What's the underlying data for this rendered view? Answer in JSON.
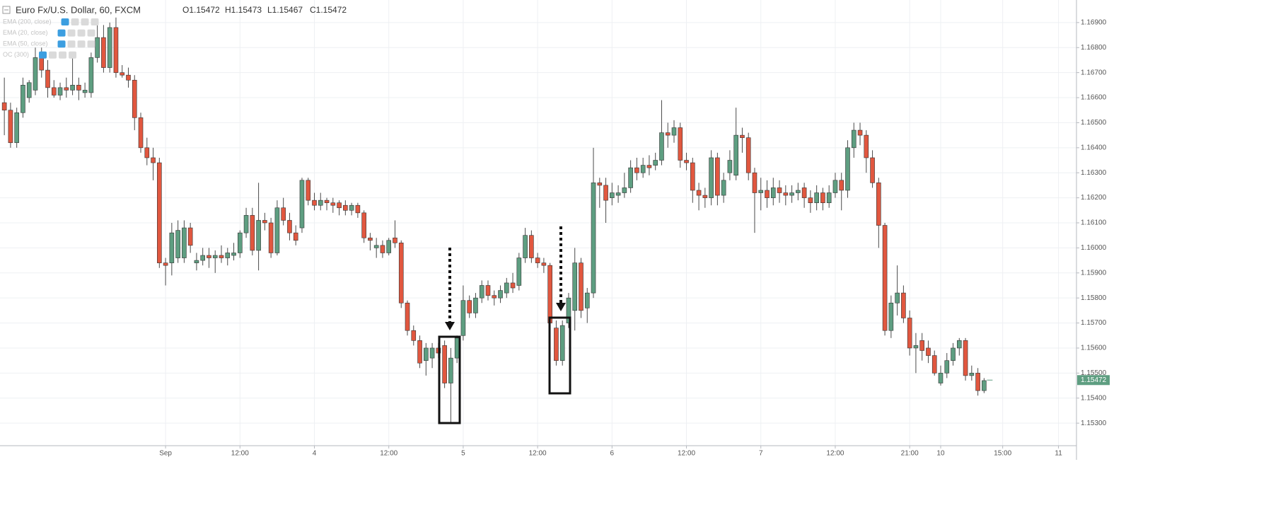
{
  "chart_data": {
    "type": "candlestick",
    "title": "Euro Fx/U.S. Dollar, 60, FXCM",
    "ohlc_legend": [
      "O1.15472",
      "H1.15473",
      "L1.15467",
      "C1.15472"
    ],
    "indicators": [
      "EMA (200, close)",
      "EMA (20, close)",
      "EMA (50, close)",
      "OC (300)"
    ],
    "up_color": "#5e9e81",
    "down_color": "#e1573f",
    "last_price": 1.15472,
    "grid": true,
    "xlim": [
      -0.7,
      172.9
    ],
    "ylim": [
      1.1521,
      1.1699
    ],
    "xticks": [
      {
        "value": 26,
        "label": "Sep"
      },
      {
        "value": 38,
        "label": "12:00"
      },
      {
        "value": 50,
        "label": "4"
      },
      {
        "value": 62,
        "label": "12:00"
      },
      {
        "value": 74,
        "label": "5"
      },
      {
        "value": 86,
        "label": "12:00"
      },
      {
        "value": 98,
        "label": "6"
      },
      {
        "value": 110,
        "label": "12:00"
      },
      {
        "value": 122,
        "label": "7"
      },
      {
        "value": 134,
        "label": "12:00"
      },
      {
        "value": 146,
        "label": "21:00"
      },
      {
        "value": 151,
        "label": "10"
      },
      {
        "value": 161,
        "label": "15:00"
      },
      {
        "value": 170,
        "label": "11"
      }
    ],
    "yticks": [
      {
        "value": 1.153,
        "label": "1.15300"
      },
      {
        "value": 1.154,
        "label": "1.15400"
      },
      {
        "value": 1.155,
        "label": "1.15500"
      },
      {
        "value": 1.156,
        "label": "1.15600"
      },
      {
        "value": 1.157,
        "label": "1.15700"
      },
      {
        "value": 1.158,
        "label": "1.15800"
      },
      {
        "value": 1.159,
        "label": "1.15900"
      },
      {
        "value": 1.16,
        "label": "1.16000"
      },
      {
        "value": 1.161,
        "label": "1.16100"
      },
      {
        "value": 1.162,
        "label": "1.16200"
      },
      {
        "value": 1.163,
        "label": "1.16300"
      },
      {
        "value": 1.164,
        "label": "1.16400"
      },
      {
        "value": 1.165,
        "label": "1.16500"
      },
      {
        "value": 1.166,
        "label": "1.16600"
      },
      {
        "value": 1.167,
        "label": "1.16700"
      },
      {
        "value": 1.168,
        "label": "1.16800"
      },
      {
        "value": 1.169,
        "label": "1.16900"
      }
    ],
    "candles": [
      [
        1.1658,
        1.1668,
        1.1645,
        1.1655
      ],
      [
        1.1655,
        1.1658,
        1.164,
        1.1642
      ],
      [
        1.1642,
        1.1656,
        1.164,
        1.1654
      ],
      [
        1.1654,
        1.1668,
        1.1652,
        1.1665
      ],
      [
        1.166,
        1.1667,
        1.1658,
        1.1666
      ],
      [
        1.1663,
        1.168,
        1.1661,
        1.1676
      ],
      [
        1.1676,
        1.168,
        1.1668,
        1.1671
      ],
      [
        1.1671,
        1.1675,
        1.166,
        1.1664
      ],
      [
        1.1664,
        1.1667,
        1.166,
        1.1661
      ],
      [
        1.1661,
        1.1666,
        1.1659,
        1.1664
      ],
      [
        1.1664,
        1.1668,
        1.166,
        1.1663
      ],
      [
        1.1663,
        1.1676,
        1.1661,
        1.1665
      ],
      [
        1.1665,
        1.1668,
        1.1659,
        1.1663
      ],
      [
        1.1662,
        1.1666,
        1.166,
        1.1663
      ],
      [
        1.1662,
        1.1678,
        1.166,
        1.1676
      ],
      [
        1.1676,
        1.169,
        1.1674,
        1.1684
      ],
      [
        1.1684,
        1.1689,
        1.167,
        1.1672
      ],
      [
        1.1672,
        1.169,
        1.167,
        1.1688
      ],
      [
        1.1688,
        1.1692,
        1.1668,
        1.167
      ],
      [
        1.167,
        1.1673,
        1.1668,
        1.1669
      ],
      [
        1.1669,
        1.1672,
        1.1664,
        1.1667
      ],
      [
        1.1667,
        1.1669,
        1.1647,
        1.1652
      ],
      [
        1.1652,
        1.1654,
        1.1638,
        1.164
      ],
      [
        1.164,
        1.1644,
        1.1633,
        1.1636
      ],
      [
        1.1636,
        1.164,
        1.1627,
        1.1634
      ],
      [
        1.1634,
        1.1636,
        1.1592,
        1.1594
      ],
      [
        1.1594,
        1.1596,
        1.1585,
        1.1593
      ],
      [
        1.1594,
        1.161,
        1.1589,
        1.1606
      ],
      [
        1.1596,
        1.1611,
        1.1594,
        1.1607
      ],
      [
        1.1596,
        1.1611,
        1.1594,
        1.1608
      ],
      [
        1.1608,
        1.161,
        1.1598,
        1.1601
      ],
      [
        1.1594,
        1.1598,
        1.1591,
        1.1595
      ],
      [
        1.1595,
        1.16,
        1.1593,
        1.1597
      ],
      [
        1.1597,
        1.16,
        1.1592,
        1.1596
      ],
      [
        1.1596,
        1.1599,
        1.159,
        1.1597
      ],
      [
        1.1597,
        1.1601,
        1.1594,
        1.1596
      ],
      [
        1.1596,
        1.16,
        1.1593,
        1.1598
      ],
      [
        1.1597,
        1.1602,
        1.1595,
        1.1598
      ],
      [
        1.1598,
        1.1607,
        1.1596,
        1.1606
      ],
      [
        1.1606,
        1.1616,
        1.1604,
        1.1613
      ],
      [
        1.1613,
        1.1616,
        1.1597,
        1.1599
      ],
      [
        1.1599,
        1.1626,
        1.1591,
        1.1611
      ],
      [
        1.1611,
        1.1614,
        1.1607,
        1.161
      ],
      [
        1.161,
        1.1612,
        1.1596,
        1.1598
      ],
      [
        1.1598,
        1.1619,
        1.1597,
        1.1616
      ],
      [
        1.1616,
        1.162,
        1.1609,
        1.1611
      ],
      [
        1.1611,
        1.1614,
        1.1603,
        1.1606
      ],
      [
        1.1606,
        1.1609,
        1.1601,
        1.1603
      ],
      [
        1.1608,
        1.1628,
        1.1606,
        1.1627
      ],
      [
        1.1627,
        1.1628,
        1.1617,
        1.1619
      ],
      [
        1.1619,
        1.1622,
        1.1615,
        1.1617
      ],
      [
        1.1617,
        1.1622,
        1.1615,
        1.1619
      ],
      [
        1.1619,
        1.162,
        1.1615,
        1.1618
      ],
      [
        1.1618,
        1.162,
        1.1614,
        1.1617
      ],
      [
        1.1618,
        1.1619,
        1.1613,
        1.1616
      ],
      [
        1.1617,
        1.1619,
        1.1613,
        1.1615
      ],
      [
        1.1615,
        1.1618,
        1.1613,
        1.1617
      ],
      [
        1.1617,
        1.1618,
        1.1612,
        1.1614
      ],
      [
        1.1614,
        1.1615,
        1.1602,
        1.1604
      ],
      [
        1.1604,
        1.1606,
        1.1599,
        1.1603
      ],
      [
        1.16,
        1.1604,
        1.1596,
        1.1601
      ],
      [
        1.1601,
        1.1603,
        1.1596,
        1.1598
      ],
      [
        1.1598,
        1.1604,
        1.1597,
        1.1603
      ],
      [
        1.1604,
        1.1611,
        1.16,
        1.1602
      ],
      [
        1.1602,
        1.1603,
        1.1576,
        1.1578
      ],
      [
        1.1578,
        1.1579,
        1.1565,
        1.1567
      ],
      [
        1.1567,
        1.1569,
        1.1561,
        1.1563
      ],
      [
        1.1563,
        1.1565,
        1.1552,
        1.1554
      ],
      [
        1.1555,
        1.1562,
        1.1549,
        1.156
      ],
      [
        1.1556,
        1.1562,
        1.1552,
        1.156
      ],
      [
        1.156,
        1.1562,
        1.1556,
        1.1558
      ],
      [
        1.1561,
        1.1563,
        1.1544,
        1.1546
      ],
      [
        1.1546,
        1.156,
        1.153,
        1.1556
      ],
      [
        1.1556,
        1.1565,
        1.1554,
        1.1564
      ],
      [
        1.1565,
        1.1585,
        1.1563,
        1.1579
      ],
      [
        1.1579,
        1.1581,
        1.1572,
        1.1574
      ],
      [
        1.1574,
        1.1582,
        1.1572,
        1.158
      ],
      [
        1.158,
        1.1587,
        1.1578,
        1.1585
      ],
      [
        1.1585,
        1.1587,
        1.1579,
        1.1581
      ],
      [
        1.1581,
        1.1583,
        1.1577,
        1.158
      ],
      [
        1.158,
        1.1585,
        1.1578,
        1.1583
      ],
      [
        1.1582,
        1.1588,
        1.158,
        1.1586
      ],
      [
        1.1586,
        1.159,
        1.1582,
        1.1584
      ],
      [
        1.1585,
        1.1598,
        1.1583,
        1.1596
      ],
      [
        1.1596,
        1.1608,
        1.1594,
        1.1605
      ],
      [
        1.1605,
        1.1607,
        1.1594,
        1.1596
      ],
      [
        1.1596,
        1.1598,
        1.1592,
        1.1594
      ],
      [
        1.1594,
        1.1596,
        1.159,
        1.1593
      ],
      [
        1.1593,
        1.1594,
        1.1566,
        1.157
      ],
      [
        1.1568,
        1.1571,
        1.1553,
        1.1555
      ],
      [
        1.1555,
        1.1571,
        1.1553,
        1.1569
      ],
      [
        1.157,
        1.1582,
        1.1568,
        1.158
      ],
      [
        1.1575,
        1.16,
        1.1567,
        1.1594
      ],
      [
        1.1594,
        1.1596,
        1.1572,
        1.1575
      ],
      [
        1.1576,
        1.1584,
        1.157,
        1.1582
      ],
      [
        1.1582,
        1.164,
        1.158,
        1.1626
      ],
      [
        1.1626,
        1.1628,
        1.1616,
        1.1625
      ],
      [
        1.1625,
        1.1628,
        1.161,
        1.1619
      ],
      [
        1.162,
        1.1626,
        1.1617,
        1.1622
      ],
      [
        1.1621,
        1.1625,
        1.1618,
        1.1622
      ],
      [
        1.1622,
        1.163,
        1.162,
        1.1624
      ],
      [
        1.1624,
        1.1635,
        1.1622,
        1.1632
      ],
      [
        1.1632,
        1.1636,
        1.1627,
        1.163
      ],
      [
        1.163,
        1.1636,
        1.1628,
        1.1633
      ],
      [
        1.1633,
        1.1637,
        1.1629,
        1.1632
      ],
      [
        1.1633,
        1.1638,
        1.1631,
        1.1635
      ],
      [
        1.1635,
        1.1659,
        1.1633,
        1.1646
      ],
      [
        1.1646,
        1.165,
        1.164,
        1.1645
      ],
      [
        1.1645,
        1.1651,
        1.1642,
        1.1648
      ],
      [
        1.1648,
        1.165,
        1.1632,
        1.1635
      ],
      [
        1.1635,
        1.1638,
        1.1631,
        1.1634
      ],
      [
        1.1634,
        1.1636,
        1.1618,
        1.1623
      ],
      [
        1.1623,
        1.1626,
        1.1615,
        1.1621
      ],
      [
        1.1621,
        1.1624,
        1.1616,
        1.162
      ],
      [
        1.162,
        1.1639,
        1.1617,
        1.1636
      ],
      [
        1.1636,
        1.1638,
        1.1617,
        1.1621
      ],
      [
        1.1621,
        1.163,
        1.1618,
        1.1627
      ],
      [
        1.163,
        1.1639,
        1.1627,
        1.1635
      ],
      [
        1.1629,
        1.1656,
        1.1627,
        1.1645
      ],
      [
        1.1645,
        1.1648,
        1.1638,
        1.1644
      ],
      [
        1.1644,
        1.1646,
        1.1627,
        1.163
      ],
      [
        1.163,
        1.1632,
        1.1606,
        1.1622
      ],
      [
        1.1622,
        1.1628,
        1.1615,
        1.1623
      ],
      [
        1.1623,
        1.1627,
        1.1616,
        1.162
      ],
      [
        1.162,
        1.1628,
        1.1617,
        1.1624
      ],
      [
        1.1624,
        1.1627,
        1.1618,
        1.1622
      ],
      [
        1.1622,
        1.1625,
        1.1617,
        1.1621
      ],
      [
        1.1621,
        1.1625,
        1.1618,
        1.1622
      ],
      [
        1.1622,
        1.1626,
        1.1619,
        1.1623
      ],
      [
        1.1624,
        1.1626,
        1.1616,
        1.162
      ],
      [
        1.162,
        1.1623,
        1.1614,
        1.1618
      ],
      [
        1.1618,
        1.1625,
        1.1615,
        1.1622
      ],
      [
        1.1622,
        1.1624,
        1.1615,
        1.1618
      ],
      [
        1.1618,
        1.1625,
        1.1616,
        1.1622
      ],
      [
        1.1622,
        1.163,
        1.162,
        1.1627
      ],
      [
        1.1627,
        1.163,
        1.1615,
        1.1623
      ],
      [
        1.1623,
        1.1643,
        1.162,
        1.164
      ],
      [
        1.164,
        1.165,
        1.1636,
        1.1647
      ],
      [
        1.1647,
        1.165,
        1.1641,
        1.1645
      ],
      [
        1.1645,
        1.1647,
        1.163,
        1.1636
      ],
      [
        1.1636,
        1.1639,
        1.1624,
        1.1626
      ],
      [
        1.1626,
        1.1628,
        1.16,
        1.1609
      ],
      [
        1.1609,
        1.161,
        1.1565,
        1.1567
      ],
      [
        1.1567,
        1.1581,
        1.1564,
        1.1578
      ],
      [
        1.1578,
        1.1593,
        1.1573,
        1.1582
      ],
      [
        1.1582,
        1.1585,
        1.157,
        1.1572
      ],
      [
        1.1572,
        1.1575,
        1.1557,
        1.156
      ],
      [
        1.156,
        1.1566,
        1.155,
        1.1561
      ],
      [
        1.1563,
        1.1566,
        1.1555,
        1.1559
      ],
      [
        1.156,
        1.1563,
        1.1554,
        1.1557
      ],
      [
        1.1557,
        1.1559,
        1.1549,
        1.155
      ],
      [
        1.1546,
        1.1553,
        1.1545,
        1.155
      ],
      [
        1.155,
        1.1558,
        1.1548,
        1.1555
      ],
      [
        1.1555,
        1.1562,
        1.1553,
        1.156
      ],
      [
        1.156,
        1.1564,
        1.1557,
        1.1563
      ],
      [
        1.1563,
        1.1564,
        1.1547,
        1.1549
      ],
      [
        1.1549,
        1.1553,
        1.1547,
        1.155
      ],
      [
        1.155,
        1.1552,
        1.1541,
        1.1543
      ],
      [
        1.1543,
        1.1548,
        1.1542,
        1.1547
      ]
    ]
  }
}
